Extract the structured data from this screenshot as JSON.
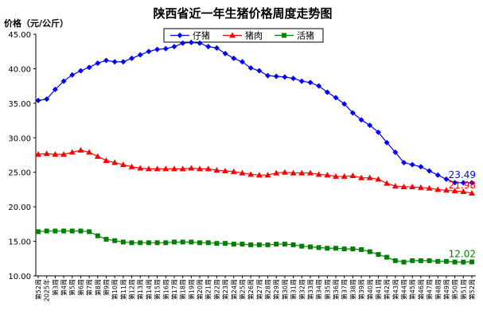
{
  "chart_data": {
    "type": "line",
    "title": "陕西省近一年生猪价格周度走势图",
    "ylabel": "价格（元/公斤）",
    "ylim": [
      10,
      45
    ],
    "yticks": [
      "10.00",
      "15.00",
      "20.00",
      "25.00",
      "30.00",
      "35.00",
      "40.00",
      "45.00"
    ],
    "grid": false,
    "legend": "top-center",
    "x": [
      "第52周",
      "2025年",
      "第3周",
      "第4周",
      "第5周",
      "第6周",
      "第7周",
      "第8周",
      "第9周",
      "第10周",
      "第11周",
      "第12周",
      "第13周",
      "第14周",
      "第15周",
      "第16周",
      "第17周",
      "第18周",
      "第19周",
      "第20周",
      "第21周",
      "第22周",
      "第23周",
      "第24周",
      "第25周",
      "第26周",
      "第27周",
      "第28周",
      "第29周",
      "第30周",
      "第31周",
      "第32周",
      "第33周",
      "第34周",
      "第35周",
      "第36周",
      "第37周",
      "第38周",
      "第39周",
      "第40周",
      "第41周",
      "第42周",
      "第43周",
      "第44周",
      "第45周",
      "第46周",
      "第47周",
      "第48周",
      "第49周",
      "第50周",
      "第51周",
      "第52周"
    ],
    "series": [
      {
        "name": "仔猪",
        "color": "#0000ff",
        "marker": "diamond",
        "values": [
          35.4,
          35.6,
          37.0,
          38.2,
          39.1,
          39.7,
          40.2,
          40.8,
          41.2,
          41.0,
          41.0,
          41.5,
          42.0,
          42.5,
          42.8,
          42.9,
          43.2,
          43.7,
          43.8,
          43.7,
          43.2,
          43.0,
          42.2,
          41.5,
          41.0,
          40.1,
          39.7,
          39.0,
          38.9,
          38.8,
          38.6,
          38.2,
          38.0,
          37.5,
          36.6,
          35.8,
          34.9,
          33.6,
          32.6,
          31.8,
          30.8,
          29.3,
          27.9,
          26.4,
          26.1,
          25.8,
          25.2,
          24.6,
          24.0,
          23.5,
          23.48,
          23.49
        ]
      },
      {
        "name": "猪肉",
        "color": "#ff0000",
        "marker": "triangle",
        "values": [
          27.6,
          27.7,
          27.6,
          27.6,
          27.9,
          28.2,
          27.9,
          27.3,
          26.7,
          26.4,
          26.1,
          25.8,
          25.6,
          25.5,
          25.5,
          25.5,
          25.5,
          25.5,
          25.6,
          25.5,
          25.5,
          25.3,
          25.2,
          25.1,
          24.9,
          24.7,
          24.6,
          24.6,
          24.9,
          25.0,
          24.9,
          24.9,
          24.9,
          24.7,
          24.6,
          24.4,
          24.4,
          24.5,
          24.2,
          24.2,
          24.0,
          23.4,
          23.0,
          22.9,
          22.9,
          22.8,
          22.7,
          22.5,
          22.4,
          22.3,
          22.2,
          21.98
        ]
      },
      {
        "name": "活猪",
        "color": "#008000",
        "marker": "square",
        "values": [
          16.4,
          16.5,
          16.5,
          16.5,
          16.5,
          16.5,
          16.4,
          15.8,
          15.3,
          15.1,
          14.9,
          14.8,
          14.8,
          14.8,
          14.8,
          14.8,
          14.9,
          14.9,
          14.9,
          14.8,
          14.8,
          14.7,
          14.7,
          14.6,
          14.6,
          14.5,
          14.5,
          14.5,
          14.6,
          14.6,
          14.5,
          14.3,
          14.2,
          14.1,
          14.0,
          14.0,
          13.9,
          13.9,
          13.8,
          13.5,
          13.1,
          12.7,
          12.2,
          12.0,
          12.2,
          12.2,
          12.2,
          12.1,
          12.1,
          12.0,
          12.0,
          12.02
        ]
      }
    ],
    "annotations": [
      {
        "series": "仔猪",
        "text": "23.49"
      },
      {
        "series": "猪肉",
        "text": "21.98"
      },
      {
        "series": "活猪",
        "text": "12.02"
      }
    ]
  }
}
